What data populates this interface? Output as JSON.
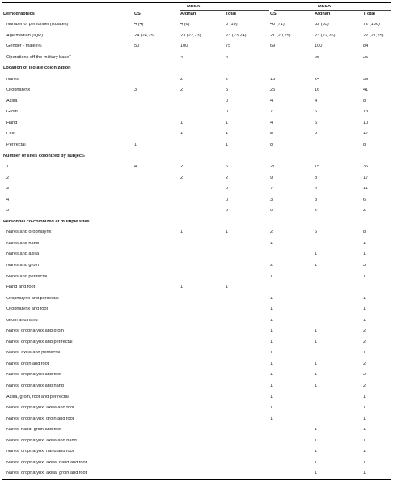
{
  "column_groups": {
    "mrsa": "MRSA",
    "mssa": "MSSA"
  },
  "columns": [
    "Demographics",
    "US",
    "Afghan",
    "Total",
    "US",
    "Afghan",
    "T otal"
  ],
  "rows": [
    {
      "type": "data",
      "label": "Number of personnel (isolates)",
      "values": [
        "4 (4)",
        "4 (6)",
        "8 (10)",
        "40 (71)",
        "32 (65)",
        "72 (136)"
      ]
    },
    {
      "type": "data",
      "label": "Age median (IQR)",
      "values": [
        "24 (24,25)",
        "23 (22,23)",
        "23 (23,24)",
        "21 (20,25)",
        "23 (22,26)",
        "22 (21,25)"
      ]
    },
    {
      "type": "data",
      "label": "Gender - males%",
      "values": [
        "50",
        "100",
        "75",
        "69",
        "100",
        "84"
      ]
    },
    {
      "type": "data",
      "label": "Operations off the military base",
      "sup": "a",
      "values": [
        "",
        "4",
        "4",
        "",
        "25",
        "25"
      ]
    },
    {
      "type": "section",
      "label": "Location of isolate colonization"
    },
    {
      "type": "data",
      "label": "Nares",
      "values": [
        "",
        "2",
        "2",
        "15",
        "24",
        "39"
      ]
    },
    {
      "type": "data",
      "label": "Oropharynx",
      "values": [
        "3",
        "2",
        "5",
        "25",
        "16",
        "41"
      ]
    },
    {
      "type": "data",
      "label": "Axilla",
      "values": [
        "",
        "",
        "0",
        "4",
        "4",
        "8"
      ]
    },
    {
      "type": "data",
      "label": "Groin",
      "values": [
        "",
        "",
        "0",
        "7",
        "6",
        "13"
      ]
    },
    {
      "type": "data",
      "label": "Hand",
      "values": [
        "",
        "1",
        "1",
        "4",
        "6",
        "10"
      ]
    },
    {
      "type": "data",
      "label": "Foot",
      "values": [
        "",
        "1",
        "1",
        "8",
        "9",
        "17"
      ]
    },
    {
      "type": "data",
      "label": "Perirectal",
      "values": [
        "1",
        "",
        "1",
        "8",
        "",
        "8"
      ]
    },
    {
      "type": "section",
      "label": "Number of sites colonized by subject",
      "sup": "b"
    },
    {
      "type": "data",
      "label": "1",
      "values": [
        "4",
        "2",
        "6",
        "21",
        "15",
        "36"
      ]
    },
    {
      "type": "data",
      "label": "2",
      "values": [
        "",
        "2",
        "2",
        "9",
        "8",
        "17"
      ]
    },
    {
      "type": "data",
      "label": "3",
      "values": [
        "",
        "",
        "0",
        "7",
        "4",
        "11"
      ]
    },
    {
      "type": "data",
      "label": "4",
      "values": [
        "",
        "",
        "0",
        "3",
        "3",
        "6"
      ]
    },
    {
      "type": "data",
      "label": "5",
      "values": [
        "",
        "",
        "0",
        "0",
        "2",
        "2"
      ]
    },
    {
      "type": "section",
      "label": "Personnel co-colonized at multiple sites"
    },
    {
      "type": "data",
      "label": "Nares and oropharynx",
      "values": [
        "",
        "1",
        "1",
        "2",
        "6",
        "8"
      ]
    },
    {
      "type": "data",
      "label": "Nares and hand",
      "values": [
        "",
        "",
        "",
        "1",
        "",
        "1"
      ]
    },
    {
      "type": "data",
      "label": "Nares and axilla",
      "values": [
        "",
        "",
        "",
        "",
        "1",
        "1"
      ]
    },
    {
      "type": "data",
      "label": "Nares and groin",
      "values": [
        "",
        "",
        "",
        "2",
        "1",
        "3"
      ]
    },
    {
      "type": "data",
      "label": "Nares and perirectal",
      "values": [
        "",
        "",
        "",
        "1",
        "",
        "1"
      ]
    },
    {
      "type": "data",
      "label": "Hand and foot",
      "values": [
        "",
        "1",
        "1",
        "",
        "",
        ""
      ]
    },
    {
      "type": "data",
      "label": "Oropharynx and perirectal",
      "values": [
        "",
        "",
        "",
        "1",
        "",
        "1"
      ]
    },
    {
      "type": "data",
      "label": "Oropharynx and foot",
      "values": [
        "",
        "",
        "",
        "1",
        "",
        "1"
      ]
    },
    {
      "type": "data",
      "label": "Groin and hand",
      "values": [
        "",
        "",
        "",
        "1",
        "",
        "1"
      ]
    },
    {
      "type": "data",
      "label": "Nares, oropharynx and groin",
      "values": [
        "",
        "",
        "",
        "1",
        "1",
        "2"
      ]
    },
    {
      "type": "data",
      "label": "Nares, oropharynx and perirectal",
      "values": [
        "",
        "",
        "",
        "1",
        "1",
        "2"
      ]
    },
    {
      "type": "data",
      "label": "Nares, axilla and perirectal",
      "values": [
        "",
        "",
        "",
        "1",
        "",
        "1"
      ]
    },
    {
      "type": "data",
      "label": "Nares, groin and foot",
      "values": [
        "",
        "",
        "",
        "1",
        "1",
        "2"
      ]
    },
    {
      "type": "data",
      "label": "Nares, oropharynx and foot",
      "values": [
        "",
        "",
        "",
        "1",
        "1",
        "2"
      ]
    },
    {
      "type": "data",
      "label": "Nares, oropharynx and hand",
      "values": [
        "",
        "",
        "",
        "1",
        "1",
        "2"
      ]
    },
    {
      "type": "data",
      "label": "Axilla, groin, foot and perirectal",
      "values": [
        "",
        "",
        "",
        "1",
        "",
        "1"
      ]
    },
    {
      "type": "data",
      "label": "Nares, oropharynx, axilla and foot",
      "values": [
        "",
        "",
        "",
        "1",
        "",
        "1"
      ]
    },
    {
      "type": "data",
      "label": "Nares, oropharynx, groin and foot",
      "values": [
        "",
        "",
        "",
        "1",
        "",
        "1"
      ]
    },
    {
      "type": "data",
      "label": "Nares, hand, groin and foot",
      "values": [
        "",
        "",
        "",
        "",
        "1",
        "1"
      ]
    },
    {
      "type": "data",
      "label": "Nares, oropharynx, axilla and hand",
      "values": [
        "",
        "",
        "",
        "",
        "1",
        "1"
      ]
    },
    {
      "type": "data",
      "label": "Nares, oropharynx, hand and foot",
      "values": [
        "",
        "",
        "",
        "",
        "1",
        "1"
      ]
    },
    {
      "type": "data",
      "label": "Nares, oropharynx, axilla, hand and foot",
      "values": [
        "",
        "",
        "",
        "",
        "1",
        "1"
      ]
    },
    {
      "type": "data",
      "label": "Nares, oropharynx, axilla, groin and foot",
      "values": [
        "",
        "",
        "",
        "",
        "1",
        "1"
      ]
    }
  ]
}
